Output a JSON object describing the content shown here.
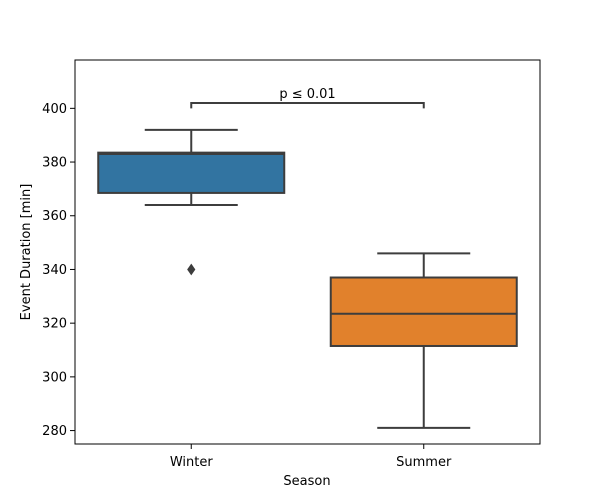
{
  "chart_data": {
    "type": "box",
    "xlabel": "Season",
    "ylabel": "Event Duration [min]",
    "ylim": [
      275,
      418
    ],
    "yticks": [
      280,
      300,
      320,
      340,
      360,
      380,
      400
    ],
    "grid": false,
    "categories": [
      "Winter",
      "Summer"
    ],
    "boxes": [
      {
        "category": "Winter",
        "whisker_low": 364,
        "q1": 368.5,
        "median": 383,
        "q3": 383.5,
        "whisker_high": 392,
        "outliers": [
          340
        ],
        "color": "#3274a1"
      },
      {
        "category": "Summer",
        "whisker_low": 281,
        "q1": 311.5,
        "median": 323.5,
        "q3": 337,
        "whisker_high": 346,
        "outliers": [],
        "color": "#e1812c"
      }
    ],
    "annotations": [
      {
        "text": "p ≤ 0.01",
        "between": [
          "Winter",
          "Summer"
        ],
        "bracket_y": 402,
        "drop_to": 400
      }
    ]
  }
}
